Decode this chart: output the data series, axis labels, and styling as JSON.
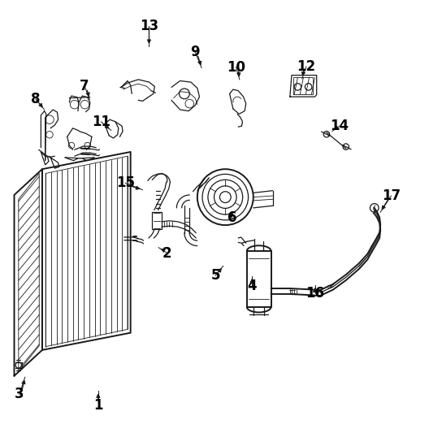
{
  "bg_color": "#ffffff",
  "line_color": "#1a1a1a",
  "label_color": "#000000",
  "figsize": [
    5.44,
    5.33
  ],
  "dpi": 100,
  "label_positions": {
    "1": [
      0.215,
      0.062,
      0.215,
      0.095
    ],
    "2": [
      0.375,
      0.415,
      0.355,
      0.428
    ],
    "3": [
      0.032,
      0.087,
      0.045,
      0.127
    ],
    "4": [
      0.572,
      0.338,
      0.572,
      0.362
    ],
    "5": [
      0.487,
      0.363,
      0.505,
      0.385
    ],
    "6": [
      0.525,
      0.497,
      0.525,
      0.512
    ],
    "7": [
      0.183,
      0.803,
      0.195,
      0.772
    ],
    "8": [
      0.07,
      0.772,
      0.09,
      0.748
    ],
    "9": [
      0.44,
      0.882,
      0.455,
      0.845
    ],
    "10": [
      0.535,
      0.847,
      0.543,
      0.818
    ],
    "11": [
      0.222,
      0.72,
      0.245,
      0.7
    ],
    "12": [
      0.698,
      0.848,
      0.688,
      0.82
    ],
    "13": [
      0.333,
      0.942,
      0.333,
      0.895
    ],
    "14": [
      0.775,
      0.71,
      0.758,
      0.698
    ],
    "15": [
      0.278,
      0.578,
      0.318,
      0.562
    ],
    "16": [
      0.718,
      0.322,
      0.718,
      0.34
    ],
    "17": [
      0.895,
      0.548,
      0.87,
      0.51
    ]
  }
}
